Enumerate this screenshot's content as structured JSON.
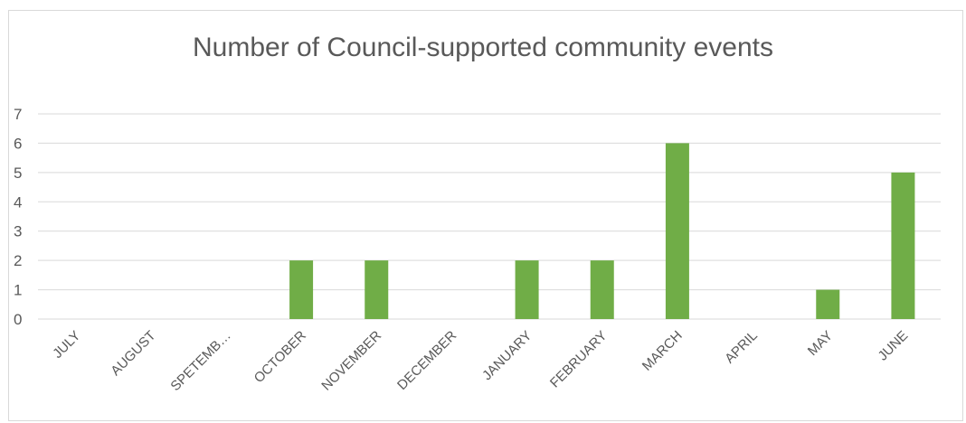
{
  "chart_data": {
    "type": "bar",
    "title": "Number of Council-supported community events",
    "xlabel": "",
    "ylabel": "",
    "categories": [
      "JULY",
      "AUGUST",
      "SPETEMB…",
      "OCTOBER",
      "NOVEMBER",
      "DECEMBER",
      "JANUARY",
      "FEBRUARY",
      "MARCH",
      "APRIL",
      "MAY",
      "JUNE"
    ],
    "values": [
      0,
      0,
      0,
      2,
      2,
      0,
      2,
      2,
      6,
      0,
      1,
      5
    ],
    "ylim": [
      0,
      7
    ],
    "yticks": [
      "0",
      "1",
      "2",
      "3",
      "4",
      "5",
      "6",
      "7"
    ],
    "grid": true,
    "legend": "none",
    "bar_color": "#70ad47",
    "grid_color": "#d9d9d9"
  }
}
